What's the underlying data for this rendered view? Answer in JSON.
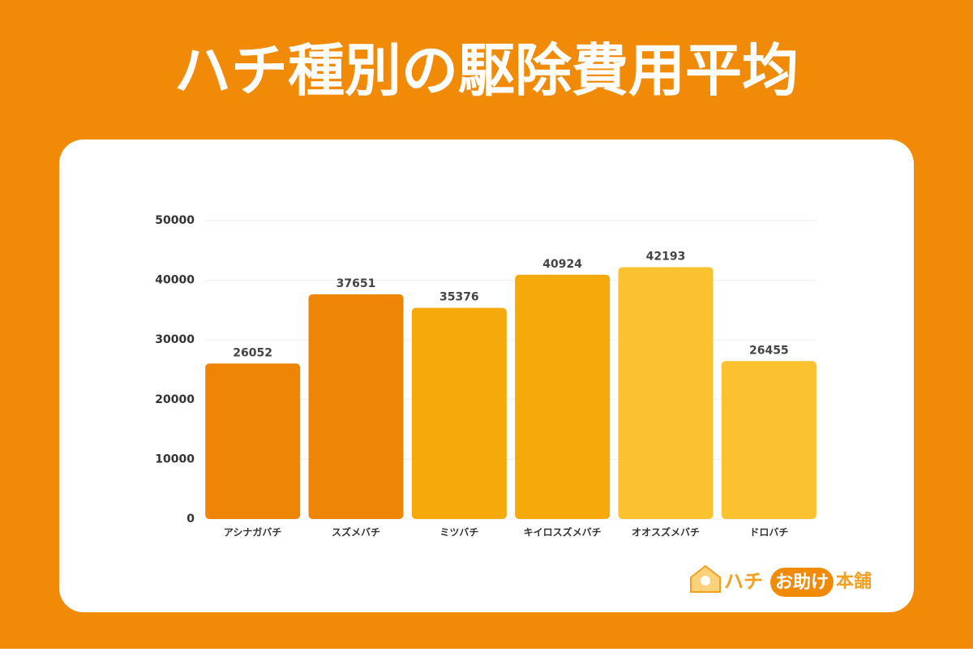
{
  "chart_data": {
    "type": "bar",
    "title": "ハチ種別の駆除費用平均",
    "categories": [
      "アシナガバチ",
      "スズメバチ",
      "ミツバチ",
      "キイロスズメバチ",
      "オオスズメバチ",
      "ドロバチ"
    ],
    "values": [
      26052,
      37651,
      35376,
      40924,
      42193,
      26455
    ],
    "colors": [
      "#ef8506",
      "#ef8506",
      "#f6a90a",
      "#f6a90a",
      "#fbc22f",
      "#fbc22f"
    ],
    "ylim": [
      0,
      50000
    ],
    "yticks": [
      0,
      10000,
      20000,
      30000,
      40000,
      50000
    ],
    "grid": true
  },
  "logo": {
    "parts": [
      "ハチ",
      "お助け",
      "本舗"
    ]
  }
}
